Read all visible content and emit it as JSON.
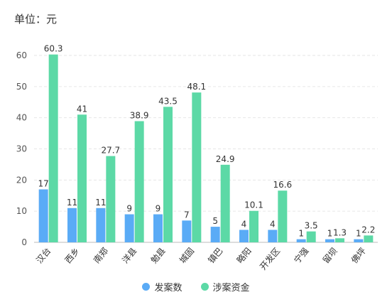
{
  "unit_label": "单位：元",
  "colors": {
    "series1": "#5aabf6",
    "series2": "#5cd9a6",
    "grid": "#e6e6e6"
  },
  "chart_data": {
    "type": "bar",
    "categories": [
      "汉台",
      "西乡",
      "南郑",
      "洋县",
      "勉县",
      "城固",
      "镇巴",
      "略阳",
      "开发区",
      "宁强",
      "留坝",
      "佛坪"
    ],
    "series": [
      {
        "name": "发案数",
        "values": [
          17,
          11,
          11,
          9,
          9,
          7,
          5,
          4,
          4,
          1,
          1,
          1
        ]
      },
      {
        "name": "涉案资金",
        "values": [
          60.3,
          41,
          27.7,
          38.9,
          43.5,
          48.1,
          24.9,
          10.1,
          16.6,
          3.5,
          1.3,
          2.2
        ]
      }
    ],
    "series_labels": [
      [
        "17",
        "11",
        "11",
        "9",
        "9",
        "7",
        "5",
        "4",
        "4",
        "1",
        "1",
        "1"
      ],
      [
        "60.3",
        "41",
        "27.7",
        "38.9",
        "43.5",
        "48.1",
        "24.9",
        "10.1",
        "16.6",
        "3.5",
        "1.3",
        "2.2"
      ]
    ],
    "yticks": [
      "0",
      "10",
      "20",
      "30",
      "40",
      "50",
      "60"
    ],
    "ylim": [
      0,
      60
    ],
    "grid": true,
    "legend_position": "bottom"
  }
}
